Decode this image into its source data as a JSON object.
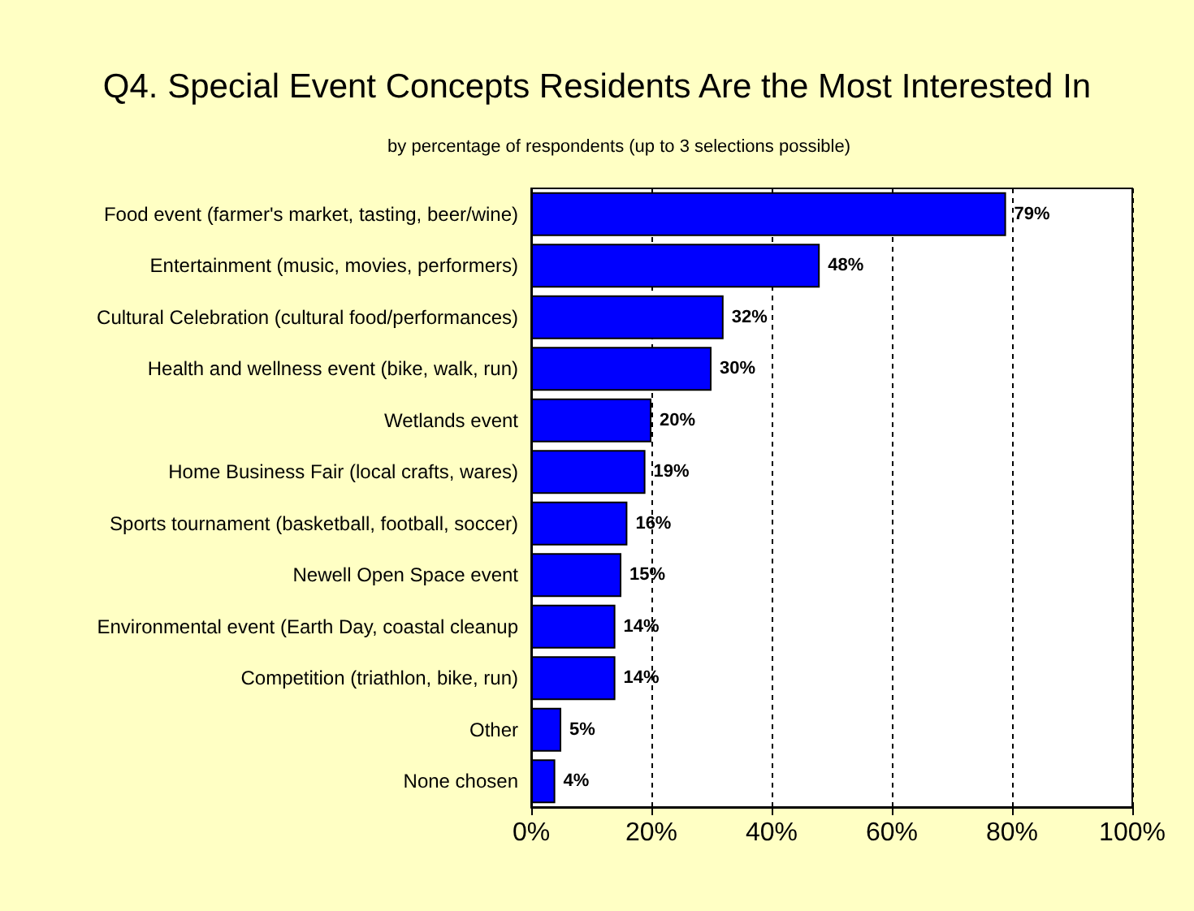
{
  "chart_data": {
    "type": "bar",
    "orientation": "horizontal",
    "title": "Q4. Special Event Concepts Residents Are the Most Interested In",
    "subtitle": "by percentage of respondents (up to 3 selections possible)",
    "categories": [
      "Food event (farmer's market, tasting, beer/wine)",
      "Entertainment (music, movies, performers)",
      "Cultural Celebration (cultural food/performances)",
      "Health and wellness event (bike, walk, run)",
      "Wetlands event",
      "Home Business Fair (local crafts, wares)",
      "Sports tournament (basketball, football, soccer)",
      "Newell Open Space event",
      "Environmental event (Earth Day, coastal cleanup",
      "Competition (triathlon, bike, run)",
      "Other",
      "None chosen"
    ],
    "values": [
      79,
      48,
      32,
      30,
      20,
      19,
      16,
      15,
      14,
      14,
      5,
      4
    ],
    "value_labels": [
      "79%",
      "48%",
      "32%",
      "30%",
      "20%",
      "19%",
      "16%",
      "15%",
      "14%",
      "14%",
      "5%",
      "4%"
    ],
    "color": "#0000ff",
    "xlim": [
      0,
      100
    ],
    "xticks": [
      {
        "value": 0,
        "label": "0%"
      },
      {
        "value": 20,
        "label": "20%"
      },
      {
        "value": 40,
        "label": "40%"
      },
      {
        "value": 60,
        "label": "60%"
      },
      {
        "value": 80,
        "label": "80%"
      },
      {
        "value": 100,
        "label": "100%"
      }
    ],
    "grid": "x"
  }
}
